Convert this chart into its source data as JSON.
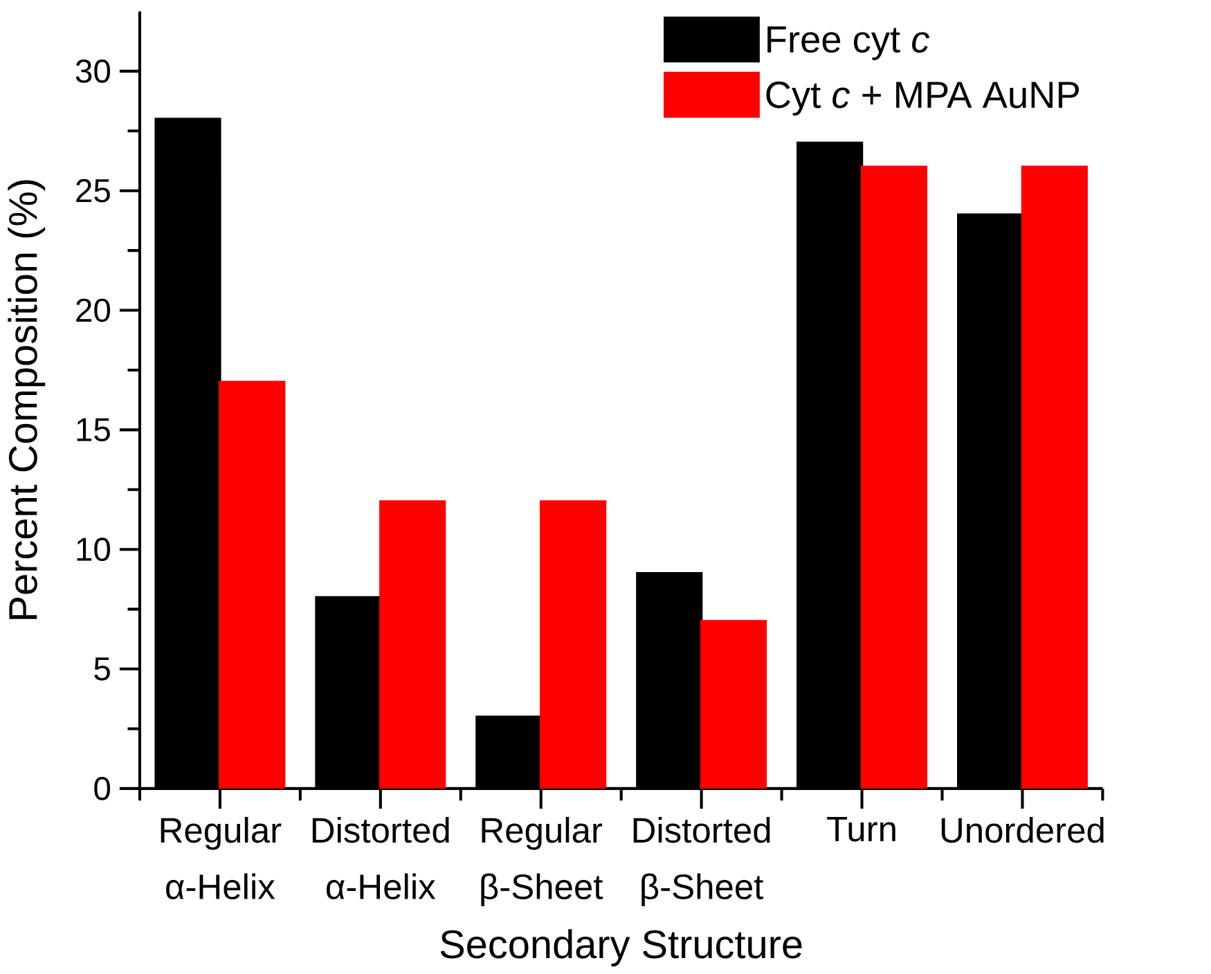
{
  "chart_data": {
    "type": "bar",
    "xlabel": "Secondary Structure",
    "ylabel": "Percent Composition (%)",
    "categories": [
      "Regular α-Helix",
      "Distorted α-Helix",
      "Regular β-Sheet",
      "Distorted β-Sheet",
      "Turn",
      "Unordered"
    ],
    "series": [
      {
        "name": "Free cyt *c*",
        "color": "#000000",
        "values": [
          28,
          8,
          3,
          9,
          27,
          24
        ]
      },
      {
        "name": "Cyt *c* + MPA AuNP",
        "color": "#ff0000",
        "values": [
          17,
          12,
          12,
          7,
          26,
          26
        ]
      }
    ],
    "ylim": [
      0,
      32.5
    ],
    "yticks": [
      0,
      5,
      10,
      15,
      20,
      25,
      30
    ],
    "legend": "top right"
  }
}
